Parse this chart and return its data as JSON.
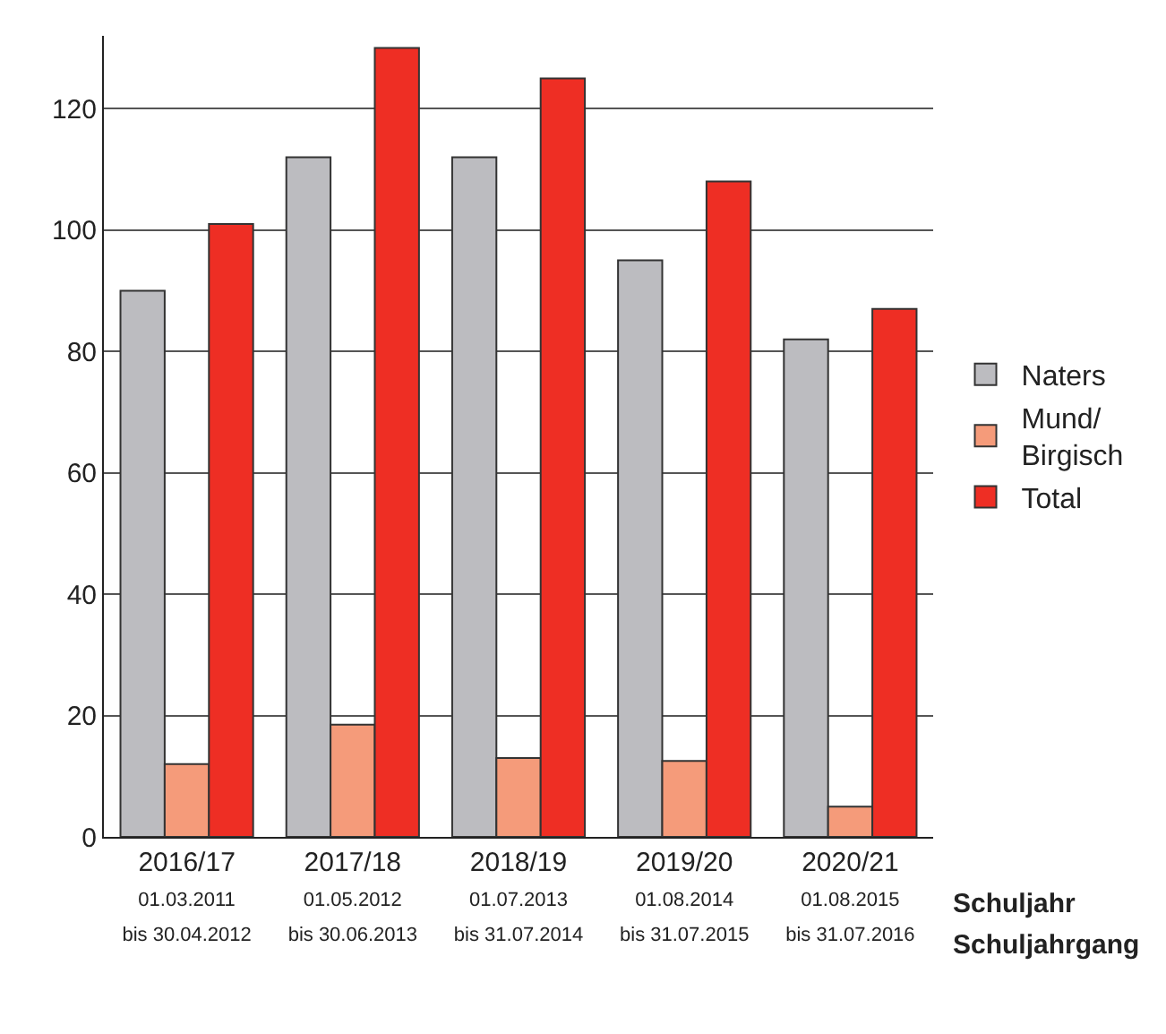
{
  "chart_data": {
    "type": "bar",
    "categories": [
      "2016/17\n01.03.2011\nbis 30.04.2012",
      "2017/18\n01.05.2012\nbis 30.06.2013",
      "2018/19\n01.07.2013\nbis 31.07.2014",
      "2019/20\n01.08.2014\nbis 31.07.2015",
      "2020/21\n01.08.2015\nbis 31.07.2016"
    ],
    "series": [
      {
        "name": "Naters",
        "color": "#bcbcc0",
        "values": [
          90,
          112,
          112,
          95,
          82
        ]
      },
      {
        "name": "Mund/\nBirgisch",
        "color": "#f59b7a",
        "values": [
          12,
          18.5,
          13,
          12.5,
          5
        ]
      },
      {
        "name": "Total",
        "color": "#ee2e24",
        "values": [
          101,
          130,
          125,
          108,
          87
        ]
      }
    ],
    "ylim": [
      0,
      132
    ],
    "yticks": [
      0,
      20,
      40,
      60,
      80,
      100,
      120
    ],
    "grid": "y",
    "legend": "right",
    "annotations": [
      "Schuljahr",
      "Schuljahrgang"
    ]
  }
}
